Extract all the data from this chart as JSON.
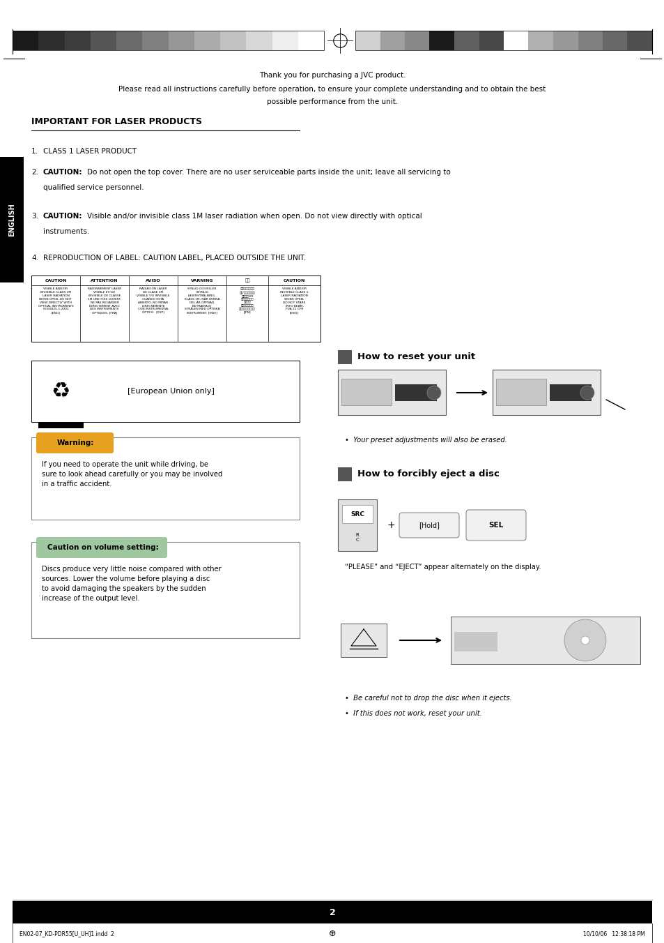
{
  "page_bg": "#ffffff",
  "page_width": 9.54,
  "page_height": 13.52,
  "top_bar_colors_left": [
    "#1a1a1a",
    "#2d2d2d",
    "#3d3d3d",
    "#555555",
    "#6b6b6b",
    "#808080",
    "#969696",
    "#acacac",
    "#c2c2c2",
    "#d8d8d8",
    "#eeeeee",
    "#ffffff"
  ],
  "top_bar_colors_right": [
    "#d0d0d0",
    "#a0a0a0",
    "#888888",
    "#1a1a1a",
    "#606060",
    "#484848",
    "#ffffff",
    "#b0b0b0",
    "#989898",
    "#808080",
    "#686868",
    "#505050"
  ],
  "header_line1": "Thank you for purchasing a JVC product.",
  "header_line2": "Please read all instructions carefully before operation, to ensure your complete understanding and to obtain the best",
  "header_line3": "possible performance from the unit.",
  "section_title": "IMPORTANT FOR LASER PRODUCTS",
  "item1": "CLASS 1 LASER PRODUCT",
  "item2_bold": "CAUTION:",
  "item2_rest": "Do not open the top cover. There are no user serviceable parts inside the unit; leave all servicing to",
  "item2_rest2": "qualified service personnel.",
  "item3_bold": "CAUTION:",
  "item3_rest": "Visible and/or invisible class 1M laser radiation when open. Do not view directly with optical",
  "item3_rest2": "instruments.",
  "item4": "REPRODUCTION OF LABEL: CAUTION LABEL, PLACED OUTSIDE THE UNIT.",
  "warning_title": "Warning:",
  "warning_text": "If you need to operate the unit while driving, be\nsure to look ahead carefully or you may be involved\nin a traffic accident.",
  "caution_title": "Caution on volume setting:",
  "caution_text": "Discs produce very little noise compared with other\nsources. Lower the volume before playing a disc\nto avoid damaging the speakers by the sudden\nincrease of the output level.",
  "reset_title": "How to reset your unit",
  "eject_title": "How to forcibly eject a disc",
  "eject_note1": "“PLEASE” and “EJECT” appear alternately on the display.",
  "bullet1": "Your preset adjustments will also be erased.",
  "bullet2": "Be careful not to drop the disc when it ejects.",
  "bullet3": "If this does not work, reset your unit.",
  "eu_text": "[European Union only]",
  "page_number": "2",
  "footer_left": "EN02-07_KD-PDR55[U_UH]1.indd  2",
  "footer_right": "10/10/06   12:38:18 PM",
  "english_tab": "ENGLISH",
  "hold_text": "[Hold]",
  "sel_text": "SEL",
  "src_text": "SRC",
  "plus_text": "+"
}
